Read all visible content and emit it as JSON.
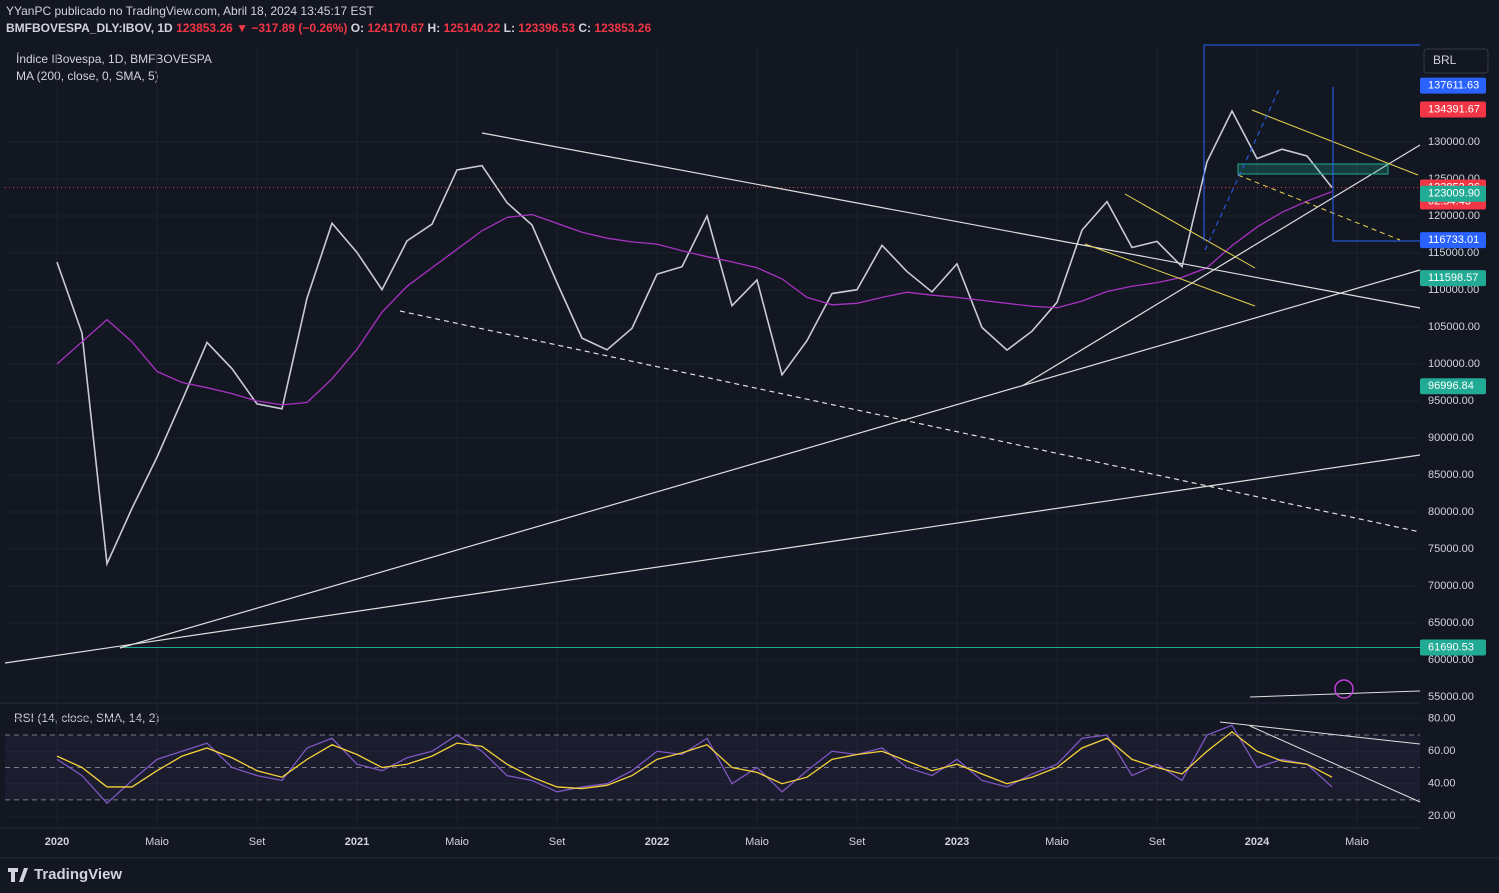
{
  "header": {
    "publisher": "YYanPC publicado no TradingView.com, Abril 18, 2024 13:45:17 EST",
    "symbol": "BMFBOVESPA_DLY:IBOV, 1D",
    "last": "123853.26",
    "change": "▼ −317.89 (−0.26%)",
    "ohlc": [
      {
        "label": "O:",
        "value": "124170.67"
      },
      {
        "label": "H:",
        "value": "125140.22"
      },
      {
        "label": "L:",
        "value": "123396.53"
      },
      {
        "label": "C:",
        "value": "123853.26"
      }
    ]
  },
  "currency": "BRL",
  "countdown": "02:54:43",
  "brand": "TradingView",
  "chart_data": [
    {
      "type": "line",
      "categories": [
        "2020",
        null,
        null,
        null,
        "Maio",
        null,
        null,
        null,
        "Set",
        null,
        null,
        null,
        "2021",
        null,
        null,
        null,
        "Maio",
        null,
        null,
        null,
        "Set",
        null,
        null,
        null,
        "2022",
        null,
        null,
        null,
        "Maio",
        null,
        null,
        null,
        "Set",
        null,
        null,
        null,
        "2023",
        null,
        null,
        null,
        "Maio",
        null,
        null,
        null,
        "Set",
        null,
        null,
        null,
        "2024",
        null,
        null,
        null,
        "Maio"
      ],
      "series": [
        {
          "name": "Índice IBovespa, 1D, BMFBOVESPA",
          "color": "#c9ccd4",
          "values": [
            113761,
            104172,
            73020,
            80506,
            87403,
            95056,
            102912,
            99369,
            94603,
            93952,
            108893,
            119017,
            115068,
            110035,
            116634,
            118894,
            126216,
            126802,
            121801,
            118781,
            110979,
            103501,
            101915,
            104822,
            112144,
            113142,
            119999,
            107876,
            111351,
            98542,
            103165,
            109523,
            110037,
            116037,
            112486,
            109735,
            113532,
            104932,
            101882,
            104432,
            108335,
            118087,
            121943,
            115742,
            116565,
            113144,
            127331,
            134185,
            127752,
            129020,
            128106,
            123853.26,
            null
          ]
        },
        {
          "name": "MA (200, close, 0, SMA, 5)",
          "color": "#a832c2",
          "values": [
            100000,
            103000,
            106000,
            103000,
            99000,
            97500,
            96800,
            96000,
            95000,
            94500,
            94800,
            98000,
            102000,
            107000,
            110500,
            113000,
            115500,
            118000,
            119800,
            120200,
            119000,
            117800,
            117000,
            116500,
            116200,
            115300,
            114500,
            113800,
            113000,
            111500,
            109000,
            108000,
            108200,
            109000,
            109700,
            109300,
            109000,
            108600,
            108200,
            107800,
            107600,
            108500,
            109800,
            110500,
            111000,
            111700,
            113000,
            116000,
            118500,
            120500,
            122000,
            123300,
            null
          ]
        }
      ],
      "ylim": [
        54200,
        143100
      ],
      "yticks": [
        {
          "value": 55000,
          "label": "55000.00"
        },
        {
          "value": 60000,
          "label": "60000.00"
        },
        {
          "value": 65000,
          "label": "65000.00"
        },
        {
          "value": 70000,
          "label": "70000.00"
        },
        {
          "value": 75000,
          "label": "75000.00"
        },
        {
          "value": 80000,
          "label": "80000.00"
        },
        {
          "value": 85000,
          "label": "85000.00"
        },
        {
          "value": 90000,
          "label": "90000.00"
        },
        {
          "value": 95000,
          "label": "95000.00"
        },
        {
          "value": 100000,
          "label": "100000.00"
        },
        {
          "value": 105000,
          "label": "105000.00"
        },
        {
          "value": 110000,
          "label": "110000.00"
        },
        {
          "value": 115000,
          "label": "115000.00"
        },
        {
          "value": 120000,
          "label": "120000.00"
        },
        {
          "value": 125000,
          "label": "125000.00"
        },
        {
          "value": 130000,
          "label": "130000.00"
        }
      ],
      "levels": [
        {
          "value": 137611.63,
          "color": "#2962ff"
        },
        {
          "value": 134391.67,
          "color": "#f23645"
        },
        {
          "value": 123853.26,
          "color": "#f23645"
        },
        {
          "value": 123009.9,
          "label": "123009.90",
          "color": "#22ab94"
        },
        {
          "value": 116733.01,
          "color": "#2962ff"
        },
        {
          "value": 111598.57,
          "color": "#22ab94"
        },
        {
          "value": 96996.84,
          "color": "#22ab94"
        },
        {
          "value": 61690.53,
          "color": "#22ab94"
        }
      ],
      "grid": true
    },
    {
      "type": "line",
      "series": [
        {
          "name": "RSI (14, close, SMA, 14, 2)",
          "color": "#7e57c2",
          "values": [
            55,
            45,
            28,
            42,
            55,
            60,
            65,
            50,
            45,
            42,
            62,
            68,
            52,
            48,
            56,
            60,
            70,
            60,
            45,
            42,
            35,
            38,
            40,
            48,
            60,
            58,
            68,
            40,
            50,
            35,
            48,
            60,
            58,
            62,
            50,
            45,
            55,
            42,
            38,
            46,
            52,
            68,
            70,
            45,
            52,
            42,
            70,
            76,
            50,
            55,
            52,
            38,
            null
          ]
        },
        {
          "color": "#f5d33a",
          "values": [
            57,
            50,
            38,
            38,
            48,
            57,
            62,
            56,
            48,
            44,
            55,
            64,
            58,
            50,
            52,
            57,
            65,
            63,
            52,
            44,
            38,
            37,
            39,
            45,
            55,
            59,
            64,
            50,
            47,
            40,
            44,
            55,
            58,
            60,
            54,
            48,
            52,
            46,
            40,
            44,
            50,
            62,
            68,
            55,
            50,
            46,
            60,
            72,
            60,
            54,
            52,
            44,
            null
          ]
        }
      ],
      "ylim": [
        12.7,
        88.5
      ],
      "yticks": [
        {
          "value": 20,
          "label": "20.00"
        },
        {
          "value": 40,
          "label": "40.00"
        },
        {
          "value": 60,
          "label": "60.00"
        },
        {
          "value": 80,
          "label": "80.00"
        }
      ],
      "bands": [
        70,
        50,
        30
      ]
    }
  ]
}
